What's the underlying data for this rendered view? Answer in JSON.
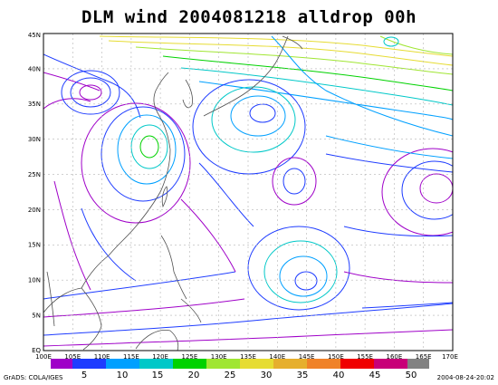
{
  "title": "DLM wind  2004081218  alldrop 00h",
  "lon_labels": [
    "100E",
    "105E",
    "110E",
    "115E",
    "120E",
    "125E",
    "130E",
    "135E",
    "140E",
    "145E",
    "150E",
    "155E",
    "160E",
    "165E",
    "170E"
  ],
  "lat_labels": [
    "EQ",
    "5N",
    "10N",
    "15N",
    "20N",
    "25N",
    "30N",
    "35N",
    "40N",
    "45N"
  ],
  "colorbar": {
    "ticks": [
      "5",
      "10",
      "15",
      "20",
      "25",
      "30",
      "35",
      "40",
      "45",
      "50"
    ],
    "colors": [
      "#9f00c8",
      "#1e3cff",
      "#00a0ff",
      "#00c8c8",
      "#00d200",
      "#a0e632",
      "#e6dc32",
      "#e6af2d",
      "#f08228",
      "#f00000",
      "#c80078",
      "#828282"
    ]
  },
  "footer_left": "GrADS: COLA/IGES",
  "footer_right": "2004-08-24-20:02"
}
